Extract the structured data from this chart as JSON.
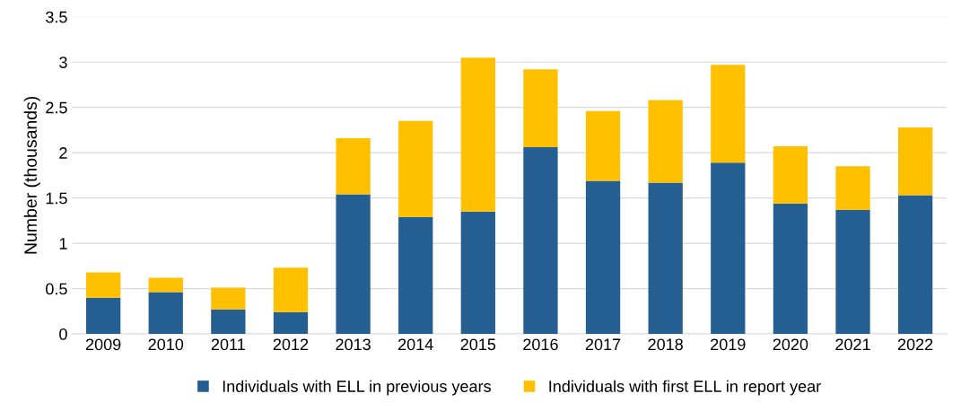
{
  "chart_data": {
    "type": "bar",
    "stacked": true,
    "ylabel": "Number (thousands)",
    "categories": [
      "2009",
      "2010",
      "2011",
      "2012",
      "2013",
      "2014",
      "2015",
      "2016",
      "2017",
      "2018",
      "2019",
      "2020",
      "2021",
      "2022"
    ],
    "series": [
      {
        "name": "Individuals with ELL in previous years",
        "color": "#255e91",
        "values": [
          0.4,
          0.46,
          0.27,
          0.24,
          1.54,
          1.29,
          1.35,
          2.06,
          1.69,
          1.67,
          1.89,
          1.44,
          1.37,
          1.53
        ]
      },
      {
        "name": "Individuals with first ELL in report year",
        "color": "#ffc000",
        "values": [
          0.28,
          0.16,
          0.24,
          0.49,
          0.62,
          1.06,
          1.7,
          0.86,
          0.77,
          0.91,
          1.08,
          0.63,
          0.48,
          0.75
        ]
      }
    ],
    "ylim": [
      0,
      3.5
    ],
    "yticks": [
      0,
      0.5,
      1,
      1.5,
      2,
      2.5,
      3,
      3.5
    ],
    "grid": "y",
    "legend": "bottom"
  }
}
